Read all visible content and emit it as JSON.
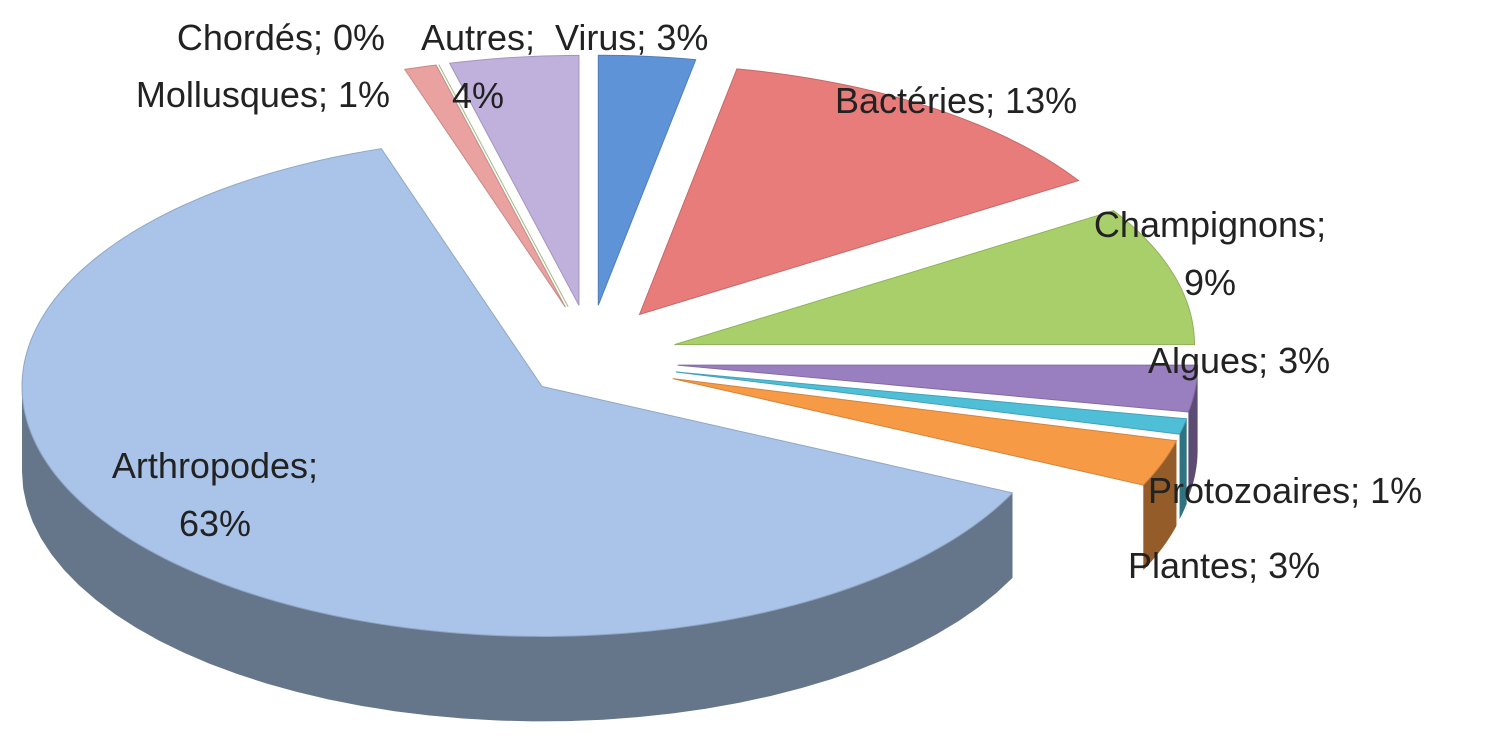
{
  "chart_data": {
    "type": "pie3d",
    "categories": [
      "Virus",
      "Bactéries",
      "Champignons",
      "Algues",
      "Protozoaires",
      "Plantes",
      "Arthropodes",
      "Mollusques",
      "Chordés",
      "Autres"
    ],
    "values": [
      3,
      13,
      9,
      3,
      1,
      3,
      63,
      1,
      0,
      4
    ],
    "value_labels": [
      "3%",
      "13%",
      "9%",
      "3%",
      "1%",
      "3%",
      "63%",
      "1%",
      "0%",
      "4%"
    ],
    "separator": "; ",
    "colors": [
      "#5f93d8",
      "#e87c7a",
      "#a9cf6a",
      "#9a7fc0",
      "#4fbfd8",
      "#f79a45",
      "#a9c4e8",
      "#e9a29f",
      "#bfdc93",
      "#c0b0dc"
    ]
  }
}
